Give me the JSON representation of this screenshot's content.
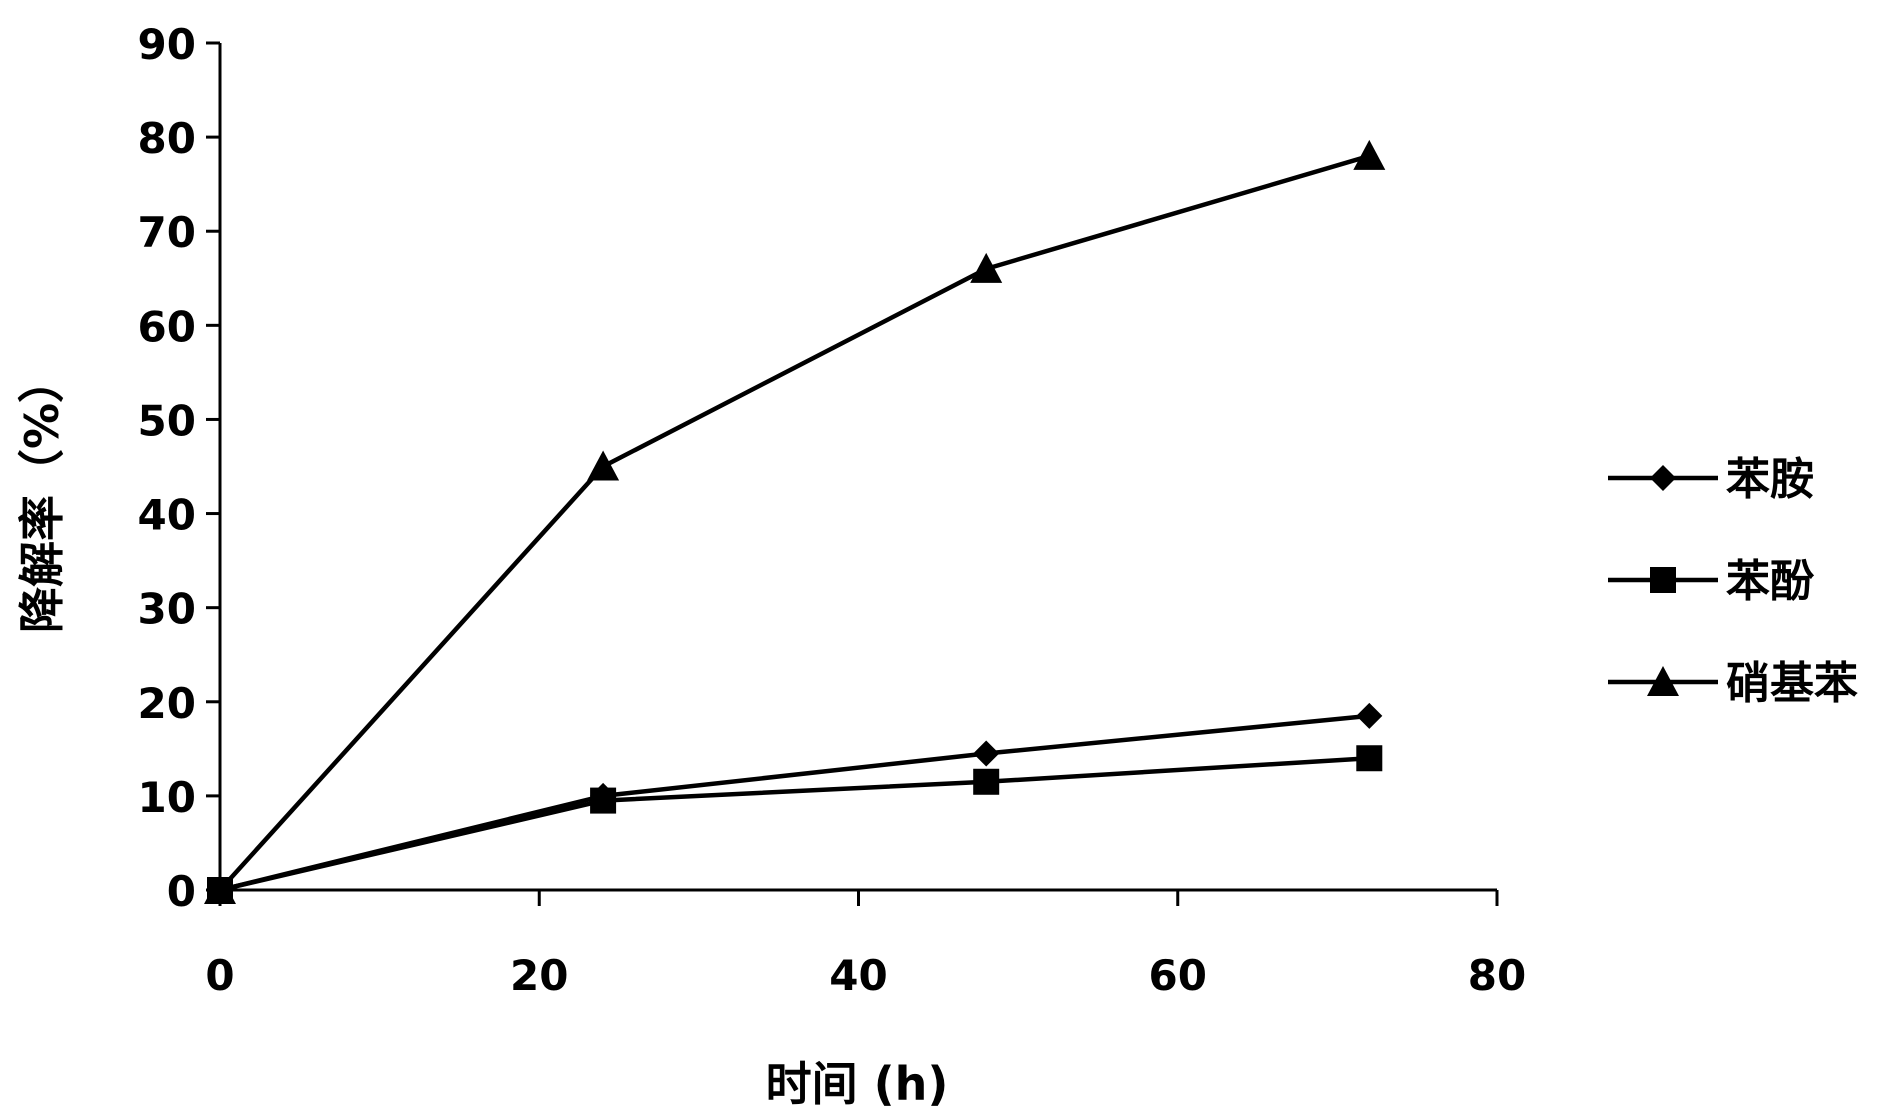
{
  "chart_data": {
    "type": "line",
    "title": "",
    "xlabel": "时间 (h)",
    "ylabel": "降解率（%）",
    "xlim": [
      0,
      80
    ],
    "ylim": [
      0,
      90
    ],
    "x_ticks": [
      0,
      20,
      40,
      60,
      80
    ],
    "y_ticks": [
      0,
      10,
      20,
      30,
      40,
      50,
      60,
      70,
      80,
      90
    ],
    "grid": false,
    "legend_position": "right",
    "x": [
      0,
      24,
      48,
      72
    ],
    "series": [
      {
        "name": "苯胺",
        "marker": "diamond",
        "values": [
          0,
          10,
          14.5,
          18.5
        ]
      },
      {
        "name": "苯酚",
        "marker": "square",
        "values": [
          0,
          9.5,
          11.5,
          14
        ]
      },
      {
        "name": "硝基苯",
        "marker": "triangle",
        "values": [
          0,
          45,
          66,
          78
        ]
      }
    ],
    "colors": {
      "line": "#000000",
      "marker": "#000000"
    }
  }
}
